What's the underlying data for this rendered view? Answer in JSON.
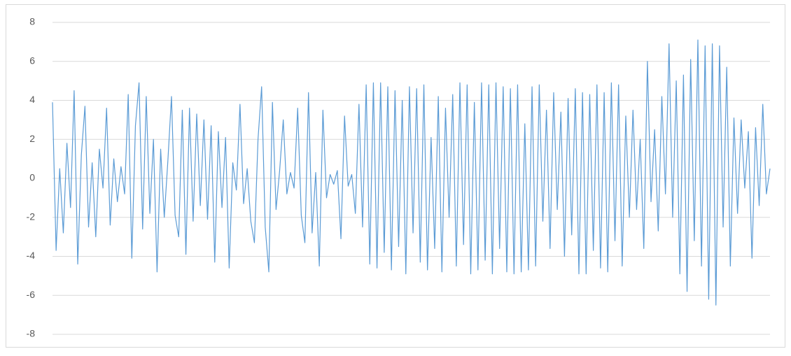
{
  "chart_data": {
    "type": "line",
    "color": "#5b9bd5",
    "grid": true,
    "ylim": [
      -8,
      8
    ],
    "yticks": [
      -8,
      -6,
      -4,
      -2,
      0,
      2,
      4,
      6,
      8
    ],
    "values": [
      3.9,
      -3.7,
      0.5,
      -2.8,
      1.8,
      -1.5,
      4.5,
      -4.4,
      1.2,
      3.7,
      -2.5,
      0.8,
      -3.0,
      1.5,
      -0.5,
      3.6,
      -2.4,
      1.0,
      -1.2,
      0.6,
      -0.8,
      4.3,
      -4.1,
      2.7,
      4.9,
      -2.6,
      4.2,
      -1.8,
      2.0,
      -4.8,
      1.5,
      -2.0,
      0.9,
      4.2,
      -1.9,
      -3.0,
      3.5,
      -3.9,
      3.6,
      -2.2,
      3.3,
      -1.4,
      3.0,
      -2.1,
      2.7,
      -4.3,
      2.4,
      -1.5,
      2.1,
      -4.6,
      0.8,
      -0.6,
      3.8,
      -1.3,
      0.5,
      -2.2,
      -3.3,
      2.0,
      4.7,
      -2.5,
      -4.8,
      3.9,
      -1.6,
      0.4,
      3.0,
      -0.8,
      0.3,
      -0.5,
      3.6,
      -1.9,
      -3.3,
      4.4,
      -2.8,
      0.3,
      -4.5,
      3.5,
      -1.0,
      0.2,
      -0.3,
      0.4,
      -3.1,
      3.2,
      -0.4,
      0.2,
      -1.8,
      3.8,
      -2.5,
      4.8,
      -4.4,
      4.9,
      -4.6,
      4.9,
      -3.8,
      4.7,
      -4.7,
      4.5,
      -3.5,
      4.0,
      -4.9,
      4.7,
      -2.8,
      4.6,
      -4.3,
      4.8,
      -4.7,
      2.1,
      -3.6,
      4.2,
      -4.8,
      3.6,
      -2.0,
      4.3,
      -4.5,
      4.9,
      -3.4,
      4.8,
      -4.9,
      3.9,
      -4.7,
      4.9,
      -4.2,
      4.8,
      -4.9,
      4.9,
      -3.6,
      4.7,
      -4.8,
      4.6,
      -4.9,
      4.8,
      -4.8,
      2.8,
      -4.7,
      4.7,
      -4.5,
      4.8,
      -2.2,
      3.5,
      -3.6,
      4.4,
      -1.6,
      3.4,
      -4.0,
      4.1,
      -2.9,
      4.6,
      -4.9,
      4.4,
      -4.9,
      4.3,
      -3.7,
      4.8,
      -4.6,
      4.4,
      -4.8,
      4.9,
      -3.2,
      4.8,
      -4.5,
      3.2,
      -2.0,
      3.5,
      -1.6,
      2.0,
      -3.6,
      6.0,
      -1.2,
      2.5,
      -2.7,
      4.2,
      -0.8,
      6.9,
      -2.0,
      5.0,
      -4.9,
      5.3,
      -5.8,
      6.1,
      -3.2,
      7.1,
      -4.5,
      6.8,
      -6.2,
      6.9,
      -6.5,
      6.8,
      -2.5,
      5.7,
      -4.5,
      3.1,
      -1.8,
      3.0,
      -0.5,
      2.4,
      -4.1,
      2.6,
      -1.4,
      3.8,
      -0.8,
      0.5
    ]
  }
}
